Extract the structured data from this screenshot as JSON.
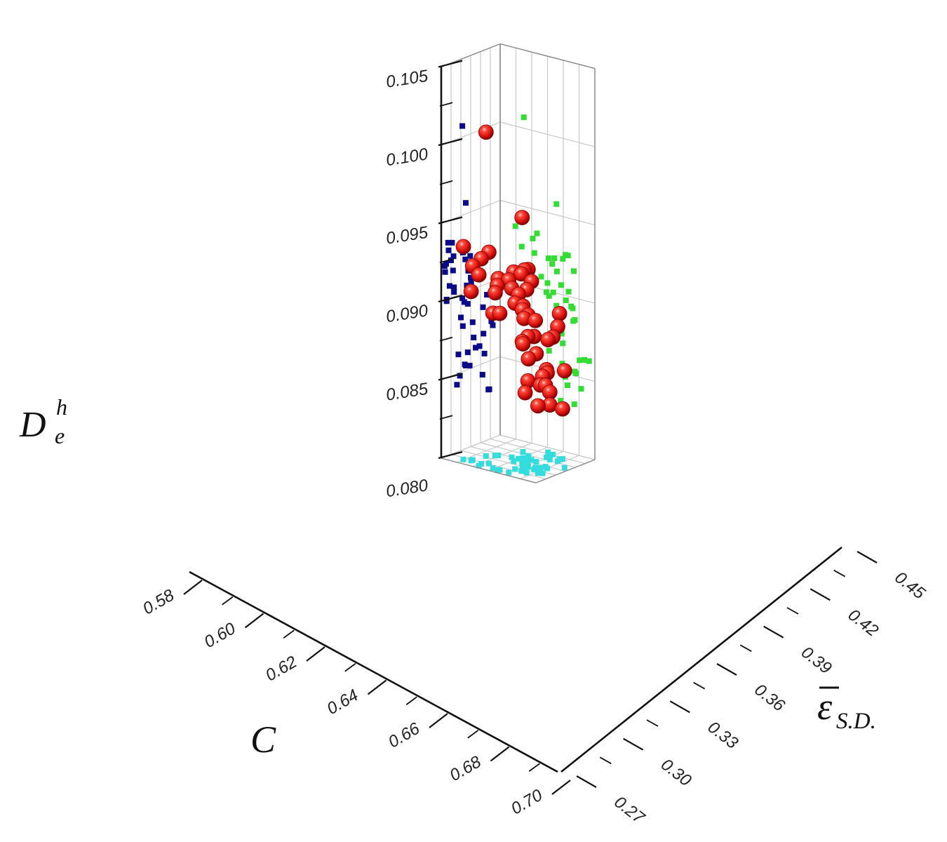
{
  "chart_data": {
    "type": "scatter",
    "title": "",
    "axes": {
      "x": {
        "label": "C",
        "ticks": [
          "0.58",
          "0.60",
          "0.62",
          "0.64",
          "0.66",
          "0.68",
          "0.70"
        ],
        "range": [
          0.58,
          0.7
        ]
      },
      "y": {
        "label_main": "ε",
        "label_sub": "S.D.",
        "overline": true,
        "ticks": [
          "0.27",
          "0.30",
          "0.33",
          "0.36",
          "0.39",
          "0.42",
          "0.45"
        ],
        "range": [
          0.27,
          0.45
        ]
      },
      "z": {
        "label_main": "D",
        "label_sup": "h",
        "label_sub": "e",
        "ticks": [
          "0.080",
          "0.085",
          "0.090",
          "0.095",
          "0.100",
          "0.105"
        ],
        "range": [
          0.08,
          0.105
        ]
      }
    },
    "grid": true,
    "colors": {
      "main": "#e01010",
      "xz_projection": "#0a0a8a",
      "yz_projection": "#33dd33",
      "xy_projection": "#33dddd",
      "grid": "#c8c8c8",
      "axis": "#111111"
    },
    "series": [
      {
        "marker": "sphere",
        "points": [
          [
            0.602,
            0.335,
            0.0832
          ],
          [
            0.604,
            0.309,
            0.0832
          ],
          [
            0.595,
            0.345,
            0.0872
          ],
          [
            0.598,
            0.333,
            0.0875
          ],
          [
            0.607,
            0.312,
            0.0893
          ],
          [
            0.612,
            0.332,
            0.0856
          ],
          [
            0.614,
            0.375,
            0.0869
          ],
          [
            0.615,
            0.308,
            0.0886
          ],
          [
            0.616,
            0.322,
            0.0843
          ],
          [
            0.622,
            0.357,
            0.0862
          ],
          [
            0.63,
            0.281,
            0.0862
          ],
          [
            0.632,
            0.342,
            0.0914
          ],
          [
            0.633,
            0.357,
            0.0897
          ],
          [
            0.634,
            0.331,
            0.0869
          ],
          [
            0.636,
            0.345,
            0.0879
          ],
          [
            0.639,
            0.36,
            0.0905
          ],
          [
            0.64,
            0.372,
            0.0908
          ],
          [
            0.641,
            0.347,
            0.0922
          ],
          [
            0.642,
            0.306,
            0.0852
          ],
          [
            0.645,
            0.393,
            0.0913
          ],
          [
            0.646,
            0.343,
            0.0892
          ],
          [
            0.646,
            0.299,
            0.0861
          ],
          [
            0.648,
            0.396,
            0.0904
          ],
          [
            0.65,
            0.343,
            0.0957
          ],
          [
            0.65,
            0.308,
            0.0853
          ],
          [
            0.651,
            0.358,
            0.0921
          ],
          [
            0.652,
            0.33,
            0.0854
          ],
          [
            0.653,
            0.315,
            0.0894
          ],
          [
            0.656,
            0.337,
            0.0879
          ],
          [
            0.657,
            0.405,
            0.1007
          ],
          [
            0.656,
            0.326,
            0.0926
          ],
          [
            0.657,
            0.325,
            0.0897
          ],
          [
            0.66,
            0.311,
            0.0885
          ],
          [
            0.662,
            0.326,
            0.0848
          ],
          [
            0.665,
            0.29,
            0.0862
          ],
          [
            0.668,
            0.296,
            0.0843
          ],
          [
            0.674,
            0.32,
            0.0903
          ],
          [
            0.674,
            0.334,
            0.0906
          ],
          [
            0.675,
            0.321,
            0.0926
          ],
          [
            0.676,
            0.31,
            0.0917
          ],
          [
            0.678,
            0.38,
            0.0935
          ],
          [
            0.68,
            0.409,
            0.0924
          ],
          [
            0.683,
            0.409,
            0.0908
          ],
          [
            0.685,
            0.388,
            0.0931
          ],
          [
            0.686,
            0.421,
            0.0936
          ],
          [
            0.689,
            0.349,
            0.09
          ],
          [
            0.689,
            0.362,
            0.0899
          ],
          [
            0.69,
            0.331,
            0.0923
          ],
          [
            0.692,
            0.351,
            0.0918
          ],
          [
            0.693,
            0.385,
            0.0922
          ]
        ]
      }
    ]
  }
}
